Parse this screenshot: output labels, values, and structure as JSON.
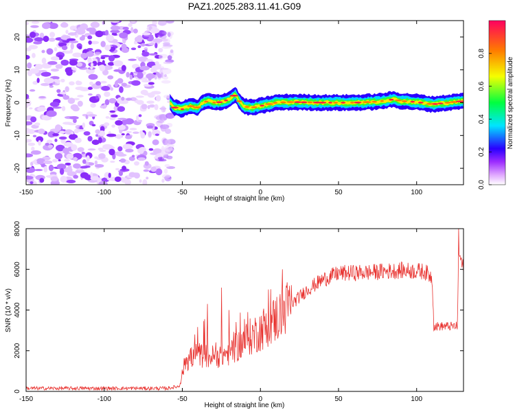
{
  "title": "PAZ1.2025.283.11.41.G09",
  "chart_data": [
    {
      "type": "heatmap",
      "title": "PAZ1.2025.283.11.41.G09",
      "xlabel": "Height of straight line (km)",
      "ylabel": "Frequency (Hz)",
      "xlim": [
        -150,
        130
      ],
      "ylim": [
        -25,
        25
      ],
      "xticks": [
        -150,
        -100,
        -50,
        0,
        50,
        100
      ],
      "yticks": [
        20,
        10,
        0,
        -10,
        -20
      ],
      "colorbar": {
        "label": "Normalized spectral amplitude",
        "range": [
          0,
          1
        ],
        "ticks": [
          0.0,
          0.2,
          0.4,
          0.6,
          0.8
        ]
      },
      "noise_region_x": [
        -150,
        -60
      ],
      "ridge": [
        {
          "x": -58,
          "f": 0.0
        },
        {
          "x": -55,
          "f": -1.5
        },
        {
          "x": -50,
          "f": -2.0
        },
        {
          "x": -45,
          "f": -1.0
        },
        {
          "x": -40,
          "f": -1.5
        },
        {
          "x": -37,
          "f": 0.0
        },
        {
          "x": -33,
          "f": 0.5
        },
        {
          "x": -30,
          "f": 0.0
        },
        {
          "x": -25,
          "f": 0.2
        },
        {
          "x": -20,
          "f": 1.0
        },
        {
          "x": -16,
          "f": 2.5
        },
        {
          "x": -13,
          "f": 0.0
        },
        {
          "x": -10,
          "f": -1.2
        },
        {
          "x": -5,
          "f": -1.5
        },
        {
          "x": 0,
          "f": -1.0
        },
        {
          "x": 10,
          "f": 0.0
        },
        {
          "x": 20,
          "f": 0.2
        },
        {
          "x": 40,
          "f": 0.0
        },
        {
          "x": 60,
          "f": 0.0
        },
        {
          "x": 75,
          "f": 0.3
        },
        {
          "x": 85,
          "f": 1.0
        },
        {
          "x": 90,
          "f": 0.5
        },
        {
          "x": 100,
          "f": 0.2
        },
        {
          "x": 110,
          "f": -0.5
        },
        {
          "x": 120,
          "f": 0.0
        },
        {
          "x": 130,
          "f": 0.5
        }
      ]
    },
    {
      "type": "line",
      "xlabel": "Height of straight line (km)",
      "ylabel": "SNR (10 * v/v)",
      "xlim": [
        -150,
        130
      ],
      "ylim": [
        0,
        8000
      ],
      "xticks": [
        -150,
        -100,
        -50,
        0,
        50,
        100
      ],
      "yticks": [
        0,
        2000,
        4000,
        6000,
        8000
      ],
      "color": "#e8322f",
      "trend": [
        {
          "x": -150,
          "y": 150
        },
        {
          "x": -60,
          "y": 150
        },
        {
          "x": -52,
          "y": 250
        },
        {
          "x": -48,
          "y": 1500
        },
        {
          "x": -40,
          "y": 1800
        },
        {
          "x": -30,
          "y": 1700
        },
        {
          "x": -20,
          "y": 1900
        },
        {
          "x": -10,
          "y": 2500
        },
        {
          "x": 0,
          "y": 3000
        },
        {
          "x": 10,
          "y": 3600
        },
        {
          "x": 20,
          "y": 4300
        },
        {
          "x": 30,
          "y": 5000
        },
        {
          "x": 40,
          "y": 5500
        },
        {
          "x": 50,
          "y": 5800
        },
        {
          "x": 70,
          "y": 5850
        },
        {
          "x": 90,
          "y": 5950
        },
        {
          "x": 105,
          "y": 5900
        },
        {
          "x": 110,
          "y": 5600
        },
        {
          "x": 111,
          "y": 3200
        },
        {
          "x": 126,
          "y": 3200
        },
        {
          "x": 127,
          "y": 6800
        },
        {
          "x": 130,
          "y": 6000
        }
      ],
      "spikes": [
        {
          "x": -45,
          "y": 2000
        },
        {
          "x": -42,
          "y": 2800
        },
        {
          "x": -34,
          "y": 4300
        },
        {
          "x": -25,
          "y": 5100
        },
        {
          "x": -20,
          "y": 4000
        },
        {
          "x": -8,
          "y": 3900
        },
        {
          "x": 8,
          "y": 4400
        },
        {
          "x": 14,
          "y": 6000
        },
        {
          "x": 127,
          "y": 8000
        }
      ]
    }
  ]
}
